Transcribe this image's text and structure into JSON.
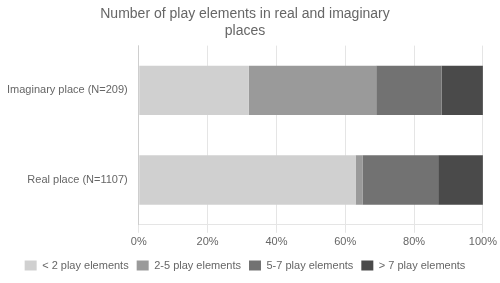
{
  "chart_data": {
    "type": "bar",
    "title": "Number of play elements in real and imaginary\nplaces",
    "orientation": "horizontal",
    "stacked": true,
    "categories": [
      "Imaginary place (N=209)",
      "Real place (N=1107)"
    ],
    "series": [
      {
        "name": "< 2 play elements",
        "color": "#d0d0d0",
        "values": [
          32,
          63
        ]
      },
      {
        "name": "2-5 play elements",
        "color": "#9a9a9a",
        "values": [
          37,
          2
        ]
      },
      {
        "name": "5-7 play elements",
        "color": "#727272",
        "values": [
          19,
          22
        ]
      },
      {
        "name": "> 7 play elements",
        "color": "#4a4a4a",
        "values": [
          12,
          13
        ]
      }
    ],
    "xlim": [
      0,
      100
    ],
    "xticks": [
      {
        "value": 0,
        "label": "0%"
      },
      {
        "value": 20,
        "label": "20%"
      },
      {
        "value": 40,
        "label": "40%"
      },
      {
        "value": 60,
        "label": "60%"
      },
      {
        "value": 80,
        "label": "80%"
      },
      {
        "value": 100,
        "label": "100%"
      }
    ],
    "grid": true,
    "legend": "bottom"
  }
}
